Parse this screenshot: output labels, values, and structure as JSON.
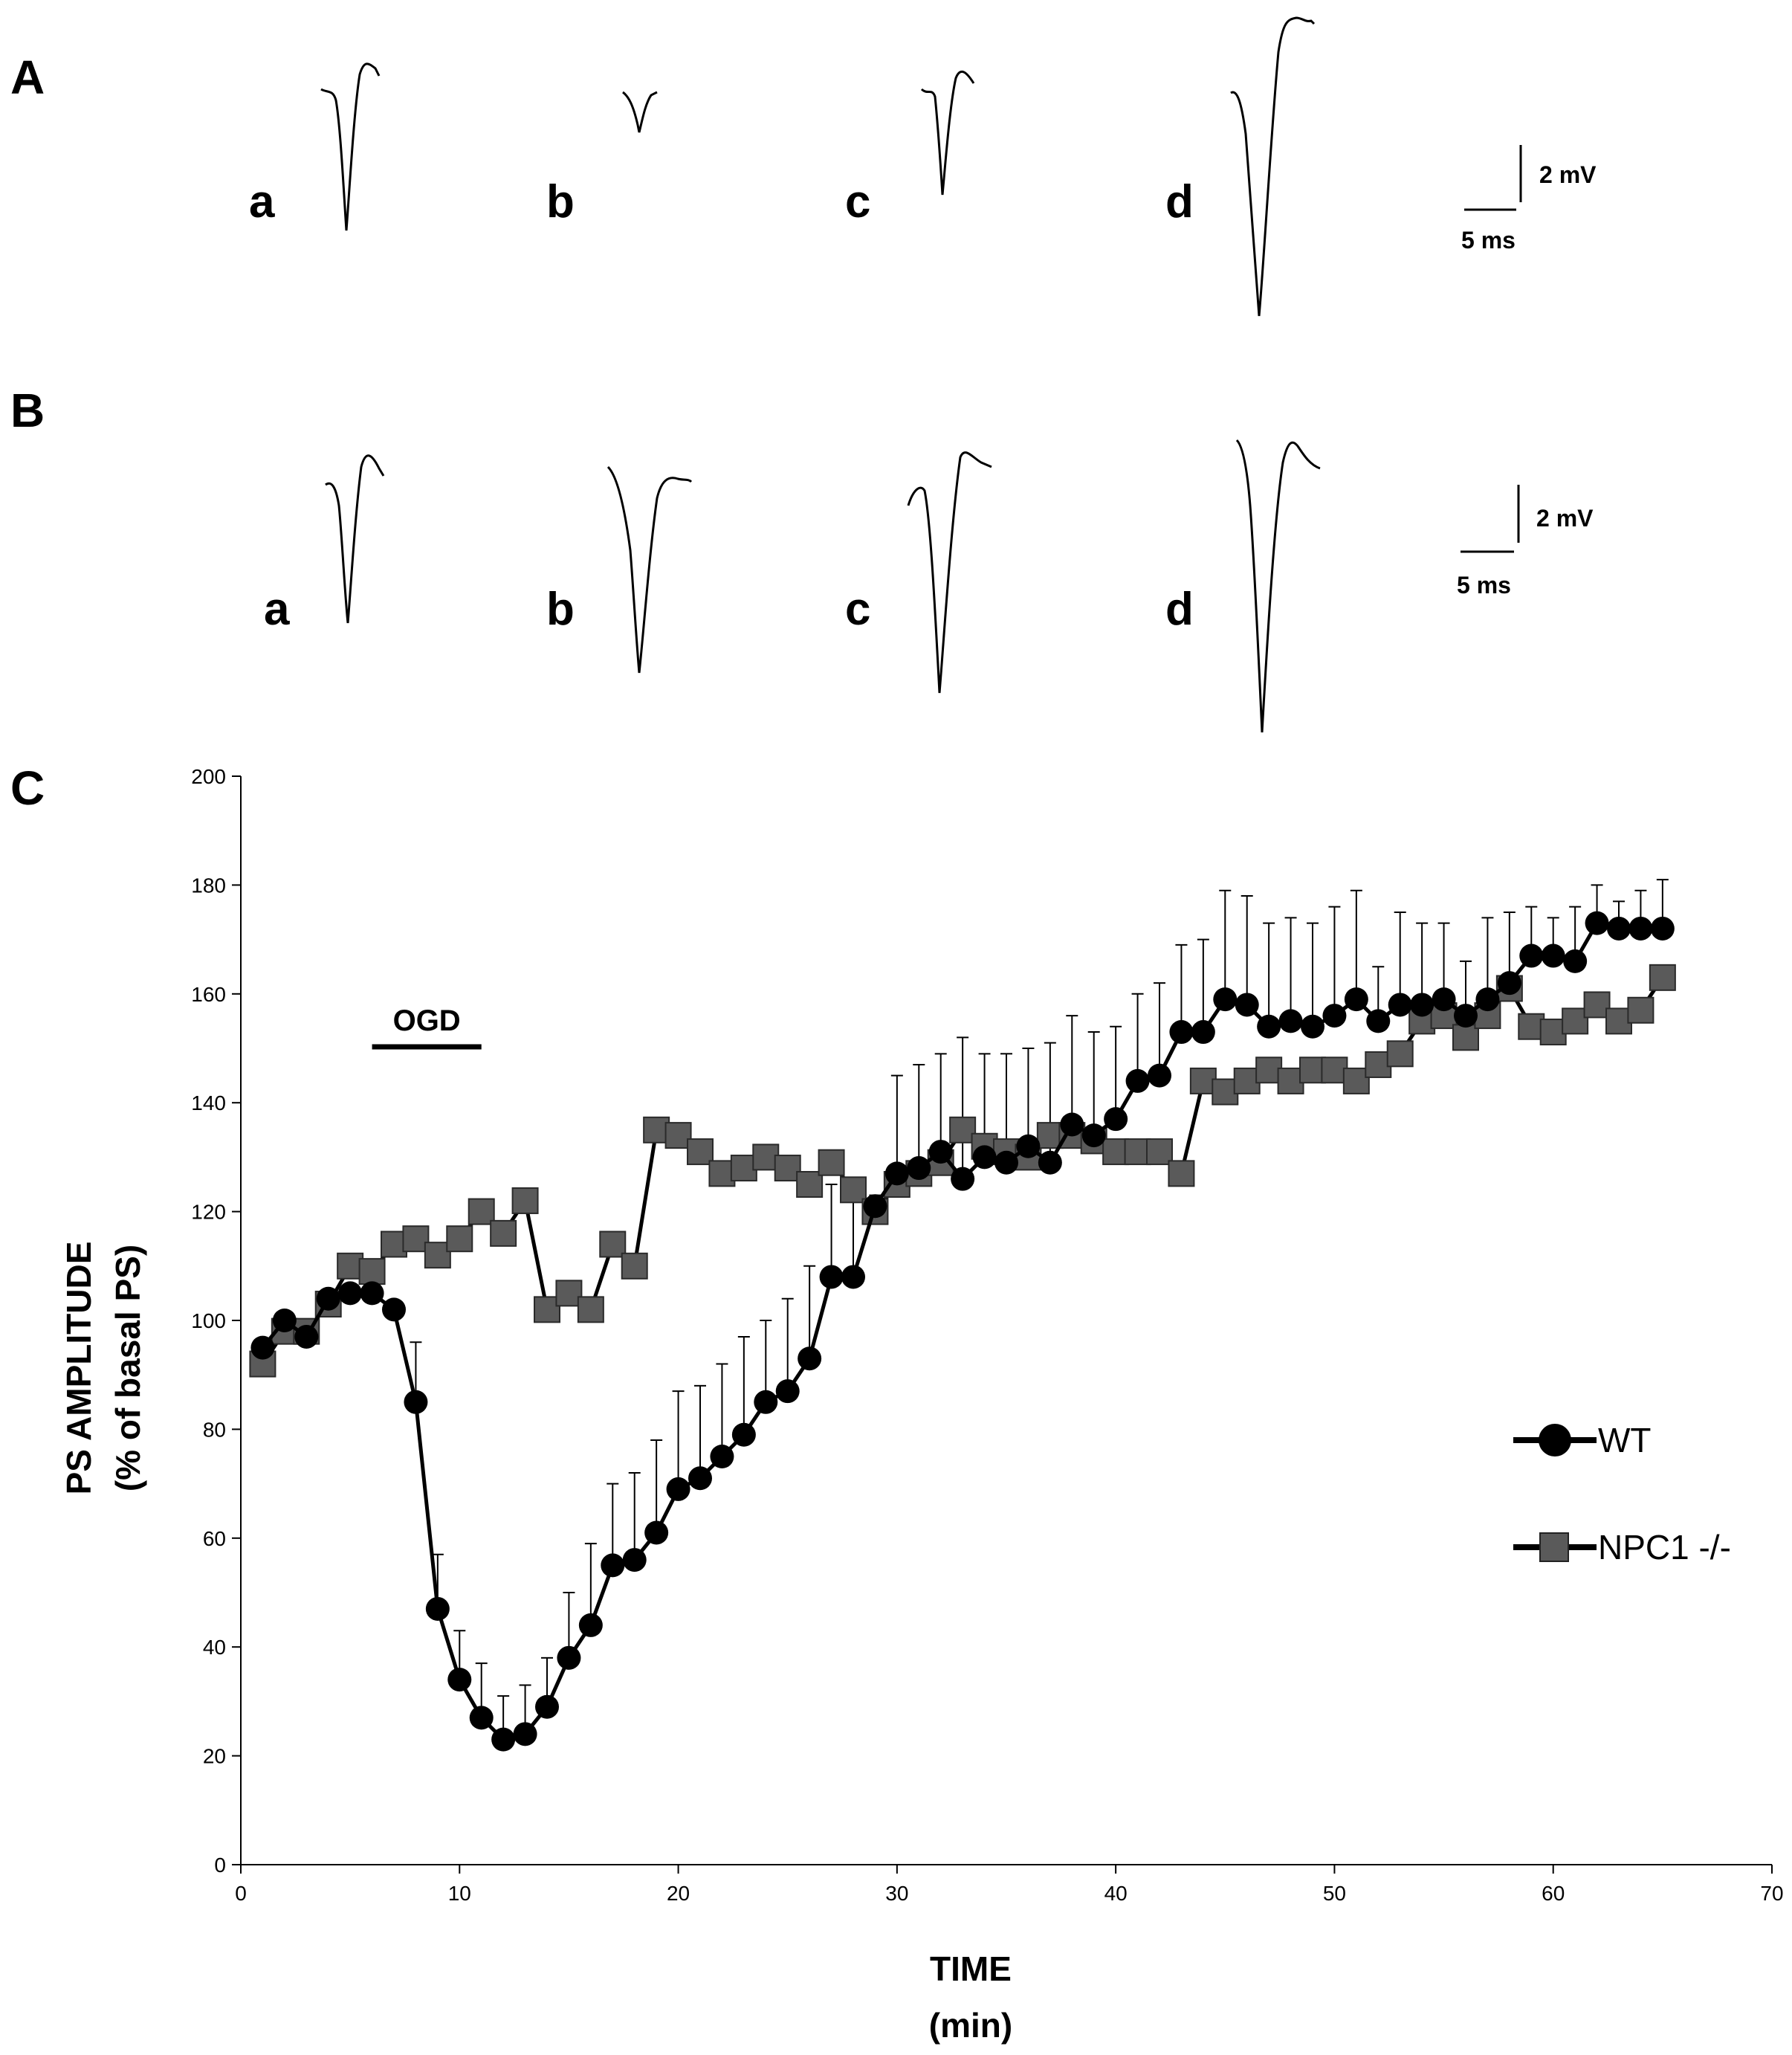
{
  "panels": {
    "A": {
      "letter": "A",
      "traces": [
        {
          "label": "a"
        },
        {
          "label": "b"
        },
        {
          "label": "c"
        },
        {
          "label": "d"
        }
      ],
      "scale_voltage": "2 mV",
      "scale_time": "5 ms"
    },
    "B": {
      "letter": "B",
      "traces": [
        {
          "label": "a"
        },
        {
          "label": "b"
        },
        {
          "label": "c"
        },
        {
          "label": "d"
        }
      ],
      "scale_voltage": "2 mV",
      "scale_time": "5 ms"
    },
    "C": {
      "letter": "C"
    }
  },
  "chart_data": {
    "type": "line",
    "ylabel_line1": "PS AMPLITUDE",
    "ylabel_line2": "(% of basal PS)",
    "xlabel_line1": "TIME",
    "xlabel_line2": "(min)",
    "xlim": [
      0,
      70
    ],
    "ylim": [
      0,
      200
    ],
    "xticks": [
      0,
      10,
      20,
      30,
      40,
      50,
      60,
      70
    ],
    "yticks": [
      0,
      20,
      40,
      60,
      80,
      100,
      120,
      140,
      160,
      180,
      200
    ],
    "annotation": {
      "label": "OGD",
      "x_start": 6,
      "x_end": 11
    },
    "series": [
      {
        "name": "WT",
        "marker": "circle",
        "color": "#000000",
        "x": [
          1,
          2,
          3,
          4,
          5,
          6,
          7,
          8,
          9,
          10,
          11,
          12,
          13,
          14,
          15,
          16,
          17,
          18,
          19,
          20,
          21,
          22,
          23,
          24,
          25,
          26,
          27,
          28,
          29,
          30,
          31,
          32,
          33,
          34,
          35,
          36,
          37,
          38,
          39,
          40,
          41,
          42,
          43,
          44,
          45,
          46,
          47,
          48,
          49,
          50,
          51,
          52,
          53,
          54,
          55,
          56,
          57,
          58,
          59,
          60,
          61,
          62,
          63,
          64,
          65
        ],
        "values": [
          95,
          100,
          97,
          104,
          105,
          105,
          102,
          85,
          47,
          34,
          27,
          23,
          24,
          29,
          38,
          44,
          55,
          56,
          61,
          69,
          71,
          75,
          79,
          85,
          87,
          93,
          108,
          108,
          121,
          127,
          128,
          131,
          126,
          130,
          129,
          132,
          129,
          136,
          134,
          137,
          144,
          145,
          153,
          153,
          159,
          158,
          154,
          155,
          154,
          156,
          159,
          155,
          158,
          158,
          159,
          156,
          159,
          162,
          167,
          167,
          166,
          173,
          172,
          172,
          172
        ]
      },
      {
        "name": "NPC1 -/-",
        "marker": "square",
        "color": "#5a5a5a",
        "x": [
          1,
          2,
          3,
          4,
          5,
          6,
          7,
          8,
          9,
          10,
          11,
          12,
          13,
          14,
          15,
          16,
          17,
          18,
          19,
          20,
          21,
          22,
          23,
          24,
          25,
          26,
          27,
          28,
          29,
          30,
          31,
          32,
          33,
          34,
          35,
          36,
          37,
          38,
          39,
          40,
          41,
          42,
          43,
          44,
          45,
          46,
          47,
          48,
          49,
          50,
          51,
          52,
          53,
          54,
          55,
          56,
          57,
          58,
          59,
          60,
          61,
          62,
          63,
          64,
          65
        ],
        "values": [
          92,
          98,
          98,
          103,
          110,
          109,
          114,
          115,
          112,
          115,
          120,
          116,
          122,
          102,
          105,
          102,
          114,
          110,
          135,
          134,
          131,
          127,
          128,
          130,
          128,
          125,
          129,
          124,
          120,
          125,
          127,
          129,
          135,
          132,
          131,
          130,
          134,
          134,
          133,
          131,
          131,
          131,
          127,
          144,
          142,
          144,
          146,
          144,
          146,
          146,
          144,
          147,
          149,
          155,
          156,
          152,
          156,
          161,
          154,
          153,
          155,
          158,
          155,
          157,
          163
        ]
      }
    ],
    "error_bars": [
      {
        "series": "WT",
        "x": [
          8,
          9,
          10,
          11,
          12,
          13,
          14,
          15,
          16,
          17,
          18,
          19,
          20,
          21,
          22,
          23,
          24,
          25,
          26,
          27,
          28,
          29,
          30,
          31,
          32,
          33,
          34,
          35,
          36,
          37,
          38,
          39,
          40,
          41,
          42,
          43,
          44,
          45,
          46,
          47,
          48,
          49,
          50,
          51,
          52,
          53,
          54,
          55,
          56,
          57,
          58,
          59,
          60,
          61,
          62,
          63,
          64,
          65
        ],
        "upper": [
          96,
          57,
          43,
          37,
          31,
          33,
          38,
          50,
          59,
          70,
          72,
          78,
          87,
          88,
          92,
          97,
          100,
          104,
          110,
          125,
          124,
          123,
          145,
          147,
          149,
          152,
          149,
          149,
          150,
          151,
          156,
          153,
          154,
          160,
          162,
          169,
          170,
          179,
          178,
          173,
          174,
          173,
          176,
          179,
          165,
          175,
          173,
          173,
          166,
          174,
          175,
          176,
          174,
          176,
          180,
          177,
          179,
          181
        ]
      }
    ],
    "legend": [
      {
        "label": "WT"
      },
      {
        "label": "NPC1 -/-"
      }
    ]
  }
}
